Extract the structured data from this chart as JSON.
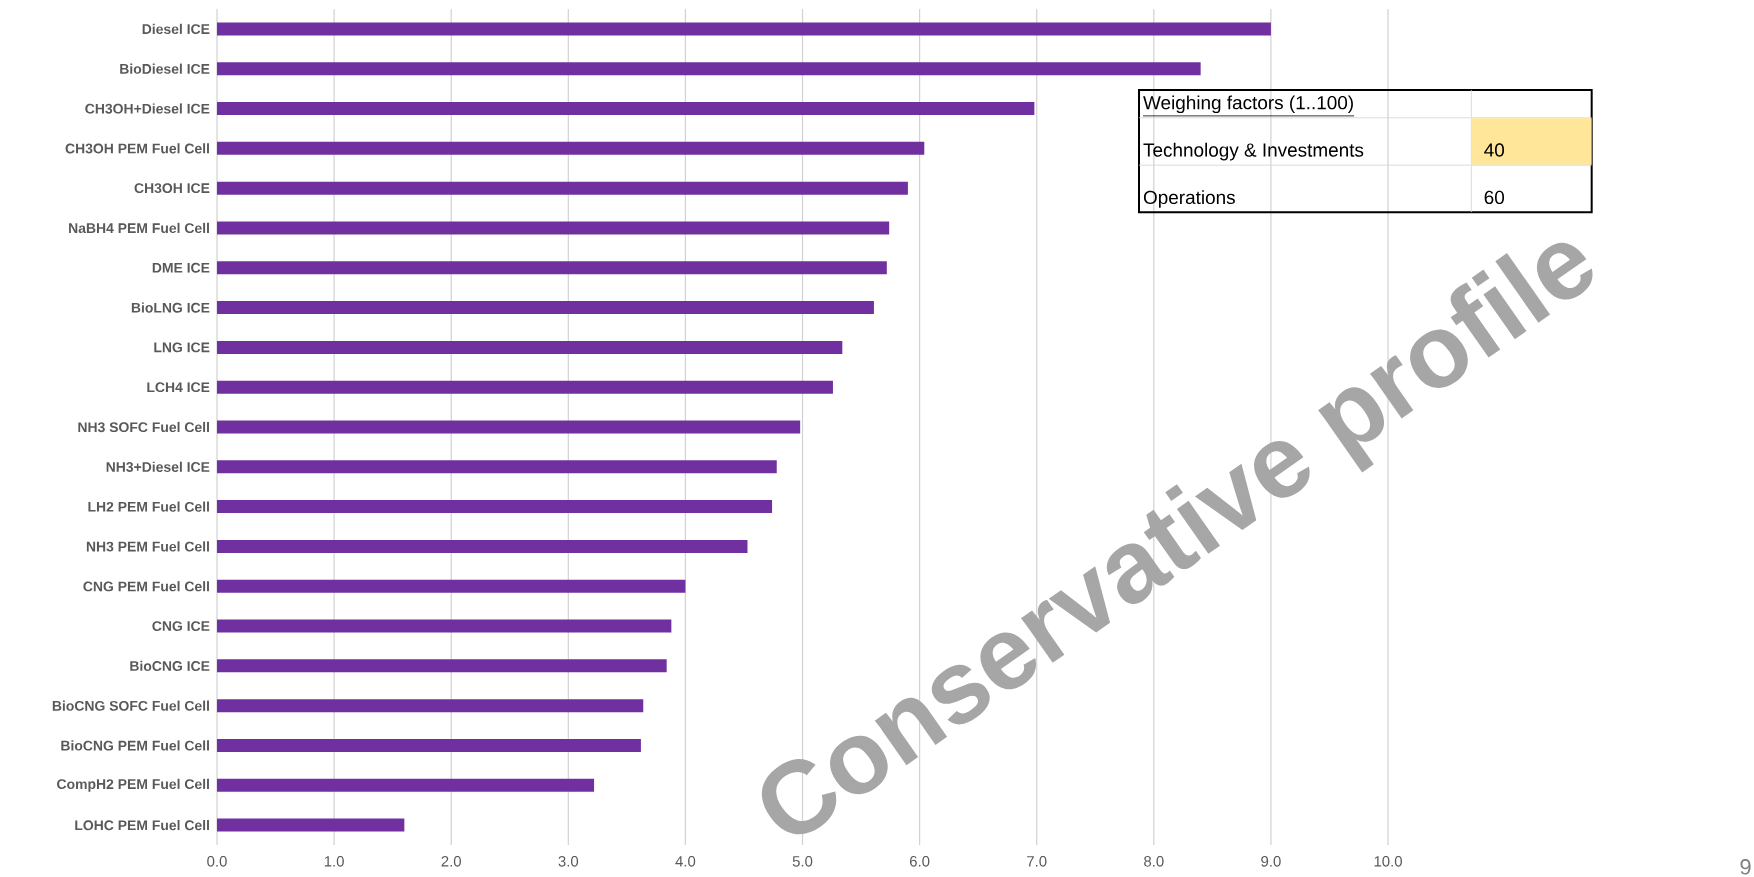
{
  "chart_data": {
    "type": "bar",
    "orientation": "horizontal",
    "categories": [
      "Diesel ICE",
      "BioDiesel ICE",
      "CH3OH+Diesel ICE",
      "CH3OH PEM Fuel Cell",
      "CH3OH ICE",
      "NaBH4 PEM Fuel Cell",
      "DME ICE",
      "BioLNG ICE",
      "LNG ICE",
      "LCH4 ICE",
      "NH3 SOFC Fuel Cell",
      "NH3+Diesel ICE",
      "LH2 PEM Fuel Cell",
      "NH3 PEM Fuel Cell",
      "CNG PEM Fuel Cell",
      "CNG ICE",
      "BioCNG ICE",
      "BioCNG SOFC Fuel Cell",
      "BioCNG PEM Fuel Cell",
      "CompH2 PEM Fuel Cell",
      "LOHC PEM Fuel Cell"
    ],
    "values": [
      9.0,
      8.4,
      6.98,
      6.04,
      5.9,
      5.74,
      5.72,
      5.61,
      5.34,
      5.26,
      4.98,
      4.78,
      4.74,
      4.53,
      4.0,
      3.88,
      3.84,
      3.64,
      3.62,
      3.22,
      1.6
    ],
    "color": "#7030a0",
    "xlim": [
      0,
      10
    ],
    "xticks": [
      {
        "value": 0,
        "label": "0.0"
      },
      {
        "value": 1,
        "label": "1.0"
      },
      {
        "value": 2,
        "label": "2.0"
      },
      {
        "value": 3,
        "label": "3.0"
      },
      {
        "value": 4,
        "label": "4.0"
      },
      {
        "value": 5,
        "label": "5.0"
      },
      {
        "value": 6,
        "label": "6.0"
      },
      {
        "value": 7,
        "label": "7.0"
      },
      {
        "value": 8,
        "label": "8.0"
      },
      {
        "value": 9,
        "label": "9.0"
      },
      {
        "value": 10,
        "label": "10.0"
      }
    ],
    "grid": "x",
    "annotations": [
      "Conservative profile",
      "Weighing factors (1..100)",
      "Technology & Investments",
      "40",
      "Operations",
      "60",
      "9"
    ]
  }
}
